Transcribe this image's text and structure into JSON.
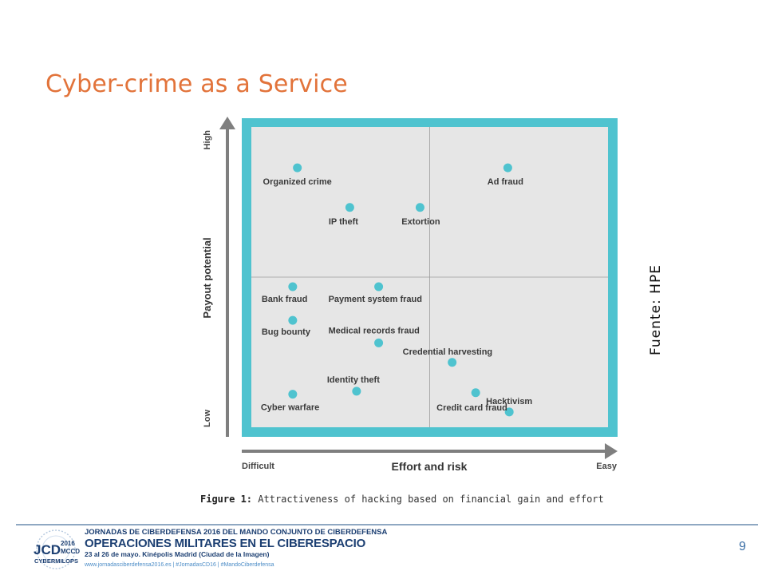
{
  "slide": {
    "title": "Cyber-crime as a Service",
    "source": "Fuente:  HPE",
    "caption_label": "Figure 1:",
    "caption_text": "Attractiveness of hacking based on financial gain and effort",
    "page_number": "9"
  },
  "footer": {
    "line1": "JORNADAS DE CIBERDEFENSA 2016 DEL MANDO CONJUNTO DE CIBERDEFENSA",
    "line2": "OPERACIONES MILITARES EN EL CIBERESPACIO",
    "line3": "23 al 26 de mayo. Kinépolis Madrid (Ciudad de la Imagen)",
    "line4": "www.jornadasciberdefensa2016.es  |  #JornadasCD16  |  #MandoCiberdefensa",
    "logo_text_main": "JCD",
    "logo_text_year": "2016",
    "logo_text_mccd": "MCCD",
    "logo_text_sub": "CYBERMILOPS"
  },
  "colors": {
    "title": "#e2733a",
    "frame": "#4fc3cf",
    "plot_bg": "#e6e6e6",
    "point": "#4fc3cf",
    "axis": "#7f7f7f"
  },
  "chart_data": {
    "type": "scatter",
    "title": "",
    "xlabel": "Effort and risk",
    "ylabel": "Payout potential",
    "x_tick_labels": [
      "Difficult",
      "Easy"
    ],
    "y_tick_labels": [
      "Low",
      "High"
    ],
    "xlim": [
      0,
      100
    ],
    "ylim": [
      0,
      100
    ],
    "quadrant_split": {
      "x": 50,
      "y": 50
    },
    "grid": false,
    "points": [
      {
        "label": "Organized crime",
        "x": 12.9,
        "y": 86.4
      },
      {
        "label": "Ad fraud",
        "x": 71.9,
        "y": 86.4
      },
      {
        "label": "IP theft",
        "x": 27.6,
        "y": 73.2
      },
      {
        "label": "Extortion",
        "x": 47.3,
        "y": 73.2
      },
      {
        "label": "Bank fraud",
        "x": 11.6,
        "y": 46.8
      },
      {
        "label": "Payment system fraud",
        "x": 35.7,
        "y": 46.8
      },
      {
        "label": "Bug bounty",
        "x": 11.6,
        "y": 35.6
      },
      {
        "label": "Medical records fraud",
        "x": 35.7,
        "y": 28.1
      },
      {
        "label": "Credential harvesting",
        "x": 56.3,
        "y": 21.6
      },
      {
        "label": "Identity theft",
        "x": 29.5,
        "y": 12.0
      },
      {
        "label": "Credit card fraud",
        "x": 62.9,
        "y": 11.5
      },
      {
        "label": "Cyber warfare",
        "x": 11.6,
        "y": 11.0
      },
      {
        "label": "Hacktivism",
        "x": 72.3,
        "y": 5.1
      }
    ]
  }
}
